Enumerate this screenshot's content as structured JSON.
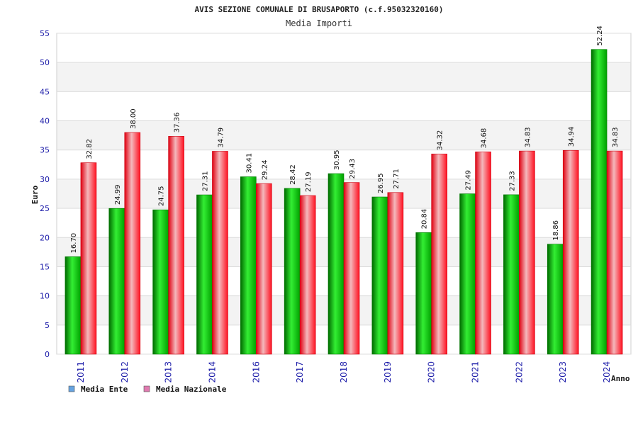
{
  "chart_data": {
    "type": "bar",
    "title": "AVIS SEZIONE COMUNALE DI BRUSAPORTO (c.f.95032320160)",
    "subtitle": "Media Importi",
    "xlabel": "Anno",
    "ylabel": "Euro",
    "ylim": [
      0,
      55
    ],
    "yticks": [
      0,
      5,
      10,
      15,
      20,
      25,
      30,
      35,
      40,
      45,
      50,
      55
    ],
    "grid": true,
    "legend_position": "bottom-left",
    "categories": [
      "2011",
      "2012",
      "2013",
      "2014",
      "2016",
      "2017",
      "2018",
      "2019",
      "2020",
      "2021",
      "2022",
      "2023",
      "2024"
    ],
    "series": [
      {
        "name": "Media Ente",
        "legend_color": "#66a3e0",
        "color": "#00cc00",
        "values": [
          16.7,
          24.99,
          24.75,
          27.31,
          30.41,
          28.42,
          30.95,
          26.95,
          20.84,
          27.49,
          27.33,
          18.86,
          52.24
        ],
        "labels": [
          "16.70",
          "24.99",
          "24.75",
          "27.31",
          "30.41",
          "28.42",
          "30.95",
          "26.95",
          "20.84",
          "27.49",
          "27.33",
          "18.86",
          "52.24"
        ]
      },
      {
        "name": "Media Nazionale",
        "legend_color": "#e07ab0",
        "color": "#ff1f2f",
        "values": [
          32.82,
          38.0,
          37.36,
          34.79,
          29.24,
          27.19,
          29.43,
          27.71,
          34.32,
          34.68,
          34.83,
          34.94,
          34.83
        ],
        "labels": [
          "32.82",
          "38.00",
          "37.36",
          "34.79",
          "29.24",
          "27.19",
          "29.43",
          "27.71",
          "34.32",
          "34.68",
          "34.83",
          "34.94",
          "34.83"
        ]
      }
    ]
  }
}
